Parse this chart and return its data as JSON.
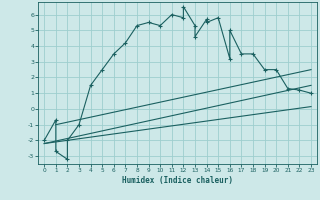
{
  "xlabel": "Humidex (Indice chaleur)",
  "bg_color": "#cde8e8",
  "grid_color": "#9ecece",
  "line_color": "#1a6060",
  "xlim": [
    -0.5,
    23.5
  ],
  "ylim": [
    -3.5,
    6.8
  ],
  "xticks": [
    0,
    1,
    2,
    3,
    4,
    5,
    6,
    7,
    8,
    9,
    10,
    11,
    12,
    13,
    14,
    15,
    16,
    17,
    18,
    19,
    20,
    21,
    22,
    23
  ],
  "yticks": [
    -3,
    -2,
    -1,
    0,
    1,
    2,
    3,
    4,
    5,
    6
  ],
  "main_x": [
    0,
    1,
    1,
    2,
    2,
    3,
    4,
    5,
    6,
    7,
    8,
    9,
    10,
    11,
    12,
    12,
    13,
    13,
    14,
    14,
    15,
    16,
    16,
    17,
    18,
    19,
    20,
    21,
    22,
    23
  ],
  "main_y": [
    -2.0,
    -0.7,
    -2.7,
    -3.2,
    -2.0,
    -1.0,
    1.5,
    2.5,
    3.5,
    4.2,
    5.3,
    5.5,
    5.3,
    6.0,
    5.8,
    6.5,
    5.3,
    4.6,
    5.7,
    5.5,
    5.8,
    3.2,
    5.0,
    3.5,
    3.5,
    2.5,
    2.5,
    1.3,
    1.2,
    1.0
  ],
  "line1_x": [
    0,
    23
  ],
  "line1_y": [
    -2.2,
    0.15
  ],
  "line2_x": [
    0,
    23
  ],
  "line2_y": [
    -2.2,
    1.5
  ],
  "line3_x": [
    1,
    23
  ],
  "line3_y": [
    -1.0,
    2.5
  ]
}
